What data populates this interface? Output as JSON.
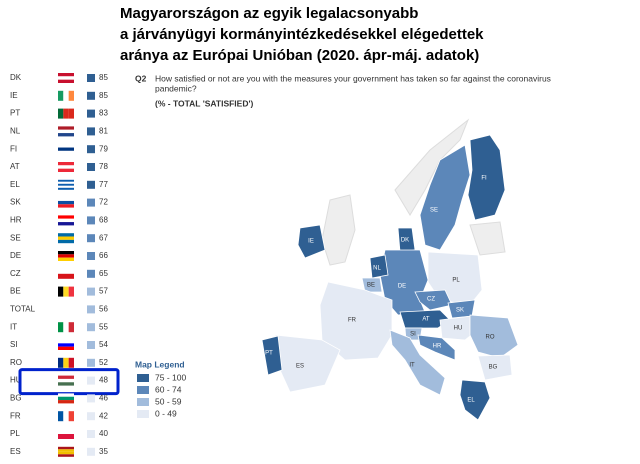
{
  "chart_data": {
    "type": "choropleth",
    "title": [
      "Magyarországon az egyik legalacsonyabb",
      "a járványügyi kormányintézkedésekkel elégedettek",
      "aránya az Európai Unióban (2020. ápr-máj. adatok)"
    ],
    "question_id": "Q2",
    "question": [
      "How satisfied or not are you with the measures your government has taken so far against the coronavirus",
      "pandemic?"
    ],
    "subtitle": "(% - TOTAL 'SATISFIED')",
    "legend_title": "Map Legend",
    "bins": [
      {
        "label": "75 - 100",
        "min": 75,
        "color": "#2f5f92"
      },
      {
        "label": "60 - 74",
        "min": 60,
        "color": "#5c87b9"
      },
      {
        "label": "50 - 59",
        "min": 50,
        "color": "#a2bcdc"
      },
      {
        "label": "0 - 49",
        "min": 0,
        "color": "#e4eaf4"
      }
    ],
    "highlight": "HU",
    "rows": [
      {
        "code": "DK",
        "value": 85,
        "flag": [
          "#c8102e",
          "#ffffff",
          "#c8102e"
        ],
        "flag_dir": "h"
      },
      {
        "code": "IE",
        "value": 85,
        "flag": [
          "#169b62",
          "#ffffff",
          "#ff883e"
        ],
        "flag_dir": "v"
      },
      {
        "code": "PT",
        "value": 83,
        "flag": [
          "#046a38",
          "#da291c",
          "#da291c"
        ],
        "flag_dir": "v"
      },
      {
        "code": "NL",
        "value": 81,
        "flag": [
          "#ae1c28",
          "#ffffff",
          "#21468b"
        ],
        "flag_dir": "h"
      },
      {
        "code": "FI",
        "value": 79,
        "flag": [
          "#ffffff",
          "#003580",
          "#ffffff"
        ],
        "flag_dir": "h"
      },
      {
        "code": "AT",
        "value": 78,
        "flag": [
          "#ed2939",
          "#ffffff",
          "#ed2939"
        ],
        "flag_dir": "h"
      },
      {
        "code": "EL",
        "value": 77,
        "flag": [
          "#0d5eaf",
          "#ffffff",
          "#0d5eaf",
          "#ffffff",
          "#0d5eaf"
        ],
        "flag_dir": "h"
      },
      {
        "code": "SK",
        "value": 72,
        "flag": [
          "#ffffff",
          "#0b4ea2",
          "#ee1c25"
        ],
        "flag_dir": "h"
      },
      {
        "code": "HR",
        "value": 68,
        "flag": [
          "#ff0000",
          "#ffffff",
          "#171796"
        ],
        "flag_dir": "h"
      },
      {
        "code": "SE",
        "value": 67,
        "flag": [
          "#006aa7",
          "#fecc00",
          "#006aa7"
        ],
        "flag_dir": "h"
      },
      {
        "code": "DE",
        "value": 66,
        "flag": [
          "#000000",
          "#dd0000",
          "#ffce00"
        ],
        "flag_dir": "h"
      },
      {
        "code": "CZ",
        "value": 65,
        "flag": [
          "#ffffff",
          "#d7141a"
        ],
        "flag_dir": "h"
      },
      {
        "code": "BE",
        "value": 57,
        "flag": [
          "#000000",
          "#fdda24",
          "#ef3340"
        ],
        "flag_dir": "v"
      },
      {
        "code": "TOTAL",
        "value": 56
      },
      {
        "code": "IT",
        "value": 55,
        "flag": [
          "#009246",
          "#ffffff",
          "#ce2b37"
        ],
        "flag_dir": "v"
      },
      {
        "code": "SI",
        "value": 54,
        "flag": [
          "#ffffff",
          "#0000ff",
          "#ff0000"
        ],
        "flag_dir": "h"
      },
      {
        "code": "RO",
        "value": 52,
        "flag": [
          "#002b7f",
          "#fcd116",
          "#ce1126"
        ],
        "flag_dir": "v"
      },
      {
        "code": "HU",
        "value": 48,
        "flag": [
          "#ce2939",
          "#ffffff",
          "#477050"
        ],
        "flag_dir": "h"
      },
      {
        "code": "BG",
        "value": 46,
        "flag": [
          "#ffffff",
          "#00966e",
          "#d62612"
        ],
        "flag_dir": "h"
      },
      {
        "code": "FR",
        "value": 42,
        "flag": [
          "#0055a4",
          "#ffffff",
          "#ef4135"
        ],
        "flag_dir": "v"
      },
      {
        "code": "PL",
        "value": 40,
        "flag": [
          "#ffffff",
          "#dc143c"
        ],
        "flag_dir": "h"
      },
      {
        "code": "ES",
        "value": 35,
        "flag": [
          "#aa151b",
          "#f1bf00",
          "#f1bf00",
          "#aa151b"
        ],
        "flag_dir": "h"
      }
    ]
  }
}
